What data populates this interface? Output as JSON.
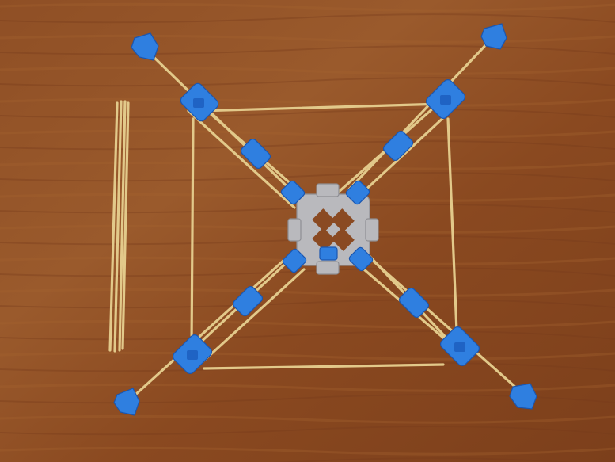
{
  "photo": {
    "subject": "",
    "colors": {
      "table": "#8a4a22",
      "sticks": "#e2c98a",
      "connectors": "#2f7fe0",
      "hub": "#b9b9bd"
    }
  }
}
